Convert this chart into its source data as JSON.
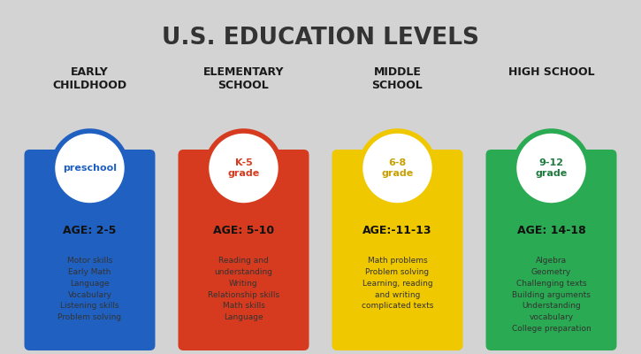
{
  "title": "U.S. EDUCATION LEVELS",
  "background_color": "#d3d3d3",
  "columns": [
    {
      "header": "EARLY\nCHILDHOOD",
      "circle_text": "preschool",
      "circle_text_color": "#2060c0",
      "bar_color": "#2060c0",
      "age": "AGE: 2-5",
      "items": "Motor skills\nEarly Math\nLanguage\nVocabulary\nListening skills\nProblem solving"
    },
    {
      "header": "ELEMENTARY\nSCHOOL",
      "circle_text": "K-5\ngrade",
      "circle_text_color": "#d63b1f",
      "bar_color": "#d63b1f",
      "age": "AGE: 5-10",
      "items": "Reading and\nunderstanding\nWriting\nRelationship skills\nMath skills\nLanguage"
    },
    {
      "header": "MIDDLE\nSCHOOL",
      "circle_text": "6-8\ngrade",
      "circle_text_color": "#c8a000",
      "bar_color": "#f0c800",
      "age": "AGE:-11-13",
      "items": "Math problems\nProblem solving\nLearning, reading\nand writing\ncomplicated texts"
    },
    {
      "header": "HIGH SCHOOL",
      "circle_text": "9-12\ngrade",
      "circle_text_color": "#1e7a3e",
      "bar_color": "#2aaa52",
      "age": "AGE: 14-18",
      "items": "Algebra\nGeometry\nChallenging texts\nBuilding arguments\nUnderstanding\nvocabulary\nCollege preparation"
    }
  ],
  "header_fontsize": 9,
  "age_fontsize": 9,
  "items_fontsize": 6.5,
  "circle_fontsize": 8,
  "title_fontsize": 19
}
